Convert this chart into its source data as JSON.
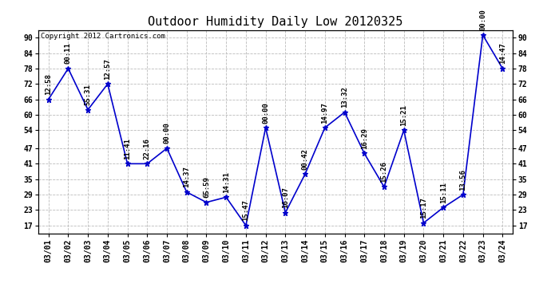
{
  "title": "Outdoor Humidity Daily Low 20120325",
  "copyright": "Copyright 2012 Cartronics.com",
  "dates": [
    "03/01",
    "03/02",
    "03/03",
    "03/04",
    "03/05",
    "03/06",
    "03/07",
    "03/08",
    "03/09",
    "03/10",
    "03/11",
    "03/12",
    "03/13",
    "03/14",
    "03/15",
    "03/16",
    "03/17",
    "03/18",
    "03/19",
    "03/20",
    "03/21",
    "03/22",
    "03/23",
    "03/24"
  ],
  "values": [
    66,
    78,
    62,
    72,
    41,
    41,
    47,
    30,
    26,
    28,
    17,
    55,
    22,
    37,
    55,
    61,
    45,
    32,
    54,
    18,
    24,
    29,
    91,
    78
  ],
  "labels": [
    "12:58",
    "00:11",
    "55:31",
    "12:57",
    "11:41",
    "22:16",
    "00:00",
    "14:37",
    "65:59",
    "14:31",
    "15:47",
    "00:00",
    "16:07",
    "00:42",
    "14:97",
    "13:32",
    "16:29",
    "15:26",
    "15:21",
    "15:17",
    "15:11",
    "13:56",
    "00:00",
    "14:47"
  ],
  "ylim": [
    14,
    93
  ],
  "yticks": [
    17,
    23,
    29,
    35,
    41,
    47,
    54,
    60,
    66,
    72,
    78,
    84,
    90
  ],
  "line_color": "#0000cc",
  "marker": "*",
  "grid_color": "#bbbbbb",
  "bg_color": "#ffffff",
  "title_fontsize": 11,
  "label_fontsize": 6.5,
  "tick_fontsize": 7,
  "copyright_fontsize": 6.5
}
